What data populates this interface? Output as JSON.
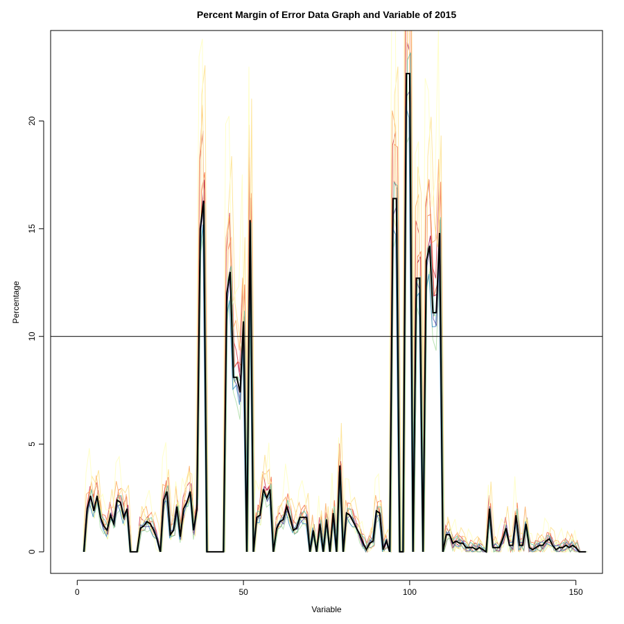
{
  "chart_data": {
    "type": "line",
    "title": "Percent Margin of Error Data Graph and  Variable of 2015",
    "xlabel": "Variable",
    "ylabel": "Percentage",
    "xlim": [
      -8,
      158
    ],
    "ylim": [
      -1,
      24.2
    ],
    "x_ticks": [
      0,
      50,
      100,
      150
    ],
    "y_ticks": [
      0,
      5,
      10,
      15,
      20
    ],
    "x_tick_labels": [
      "0",
      "50",
      "100",
      "150"
    ],
    "y_tick_labels": [
      "0",
      "5",
      "10",
      "15",
      "20"
    ],
    "reference_line": {
      "y": 10,
      "color": "#000000"
    },
    "grid": false,
    "legend": "none",
    "main_series": {
      "color": "#000000",
      "points": [
        [
          2,
          0
        ],
        [
          3,
          2.0
        ],
        [
          4,
          2.6
        ],
        [
          5,
          1.9
        ],
        [
          6,
          2.6
        ],
        [
          7,
          1.6
        ],
        [
          8,
          1.2
        ],
        [
          9,
          1.0
        ],
        [
          10,
          1.7
        ],
        [
          11,
          1.3
        ],
        [
          12,
          2.4
        ],
        [
          13,
          2.3
        ],
        [
          14,
          1.6
        ],
        [
          15,
          2.0
        ],
        [
          16,
          0
        ],
        [
          17,
          0
        ],
        [
          18,
          0
        ],
        [
          19,
          1.1
        ],
        [
          20,
          1.2
        ],
        [
          21,
          1.4
        ],
        [
          22,
          1.3
        ],
        [
          23,
          1.0
        ],
        [
          24,
          0.6
        ],
        [
          25,
          0
        ],
        [
          26,
          2.4
        ],
        [
          27,
          2.8
        ],
        [
          28,
          0.8
        ],
        [
          29,
          1.0
        ],
        [
          30,
          2.1
        ],
        [
          31,
          0.7
        ],
        [
          32,
          2.0
        ],
        [
          33,
          2.3
        ],
        [
          34,
          2.8
        ],
        [
          35,
          1.0
        ],
        [
          36,
          2.0
        ],
        [
          37,
          15.0
        ],
        [
          38,
          16.3
        ],
        [
          39,
          0
        ],
        [
          40,
          0
        ],
        [
          41,
          0
        ],
        [
          42,
          0
        ],
        [
          43,
          0
        ],
        [
          44,
          0
        ],
        [
          45,
          12.0
        ],
        [
          46,
          13.0
        ],
        [
          47,
          8.1
        ],
        [
          48,
          8.1
        ],
        [
          49,
          7.4
        ],
        [
          50,
          10.7
        ],
        [
          51,
          0
        ],
        [
          52,
          15.4
        ],
        [
          53,
          0
        ],
        [
          54,
          1.6
        ],
        [
          55,
          1.7
        ],
        [
          56,
          2.9
        ],
        [
          57,
          2.5
        ],
        [
          58,
          2.9
        ],
        [
          59,
          0
        ],
        [
          60,
          1.1
        ],
        [
          61,
          1.4
        ],
        [
          62,
          1.5
        ],
        [
          63,
          2.1
        ],
        [
          64,
          1.6
        ],
        [
          65,
          1.0
        ],
        [
          66,
          1.1
        ],
        [
          67,
          1.6
        ],
        [
          68,
          1.6
        ],
        [
          69,
          1.6
        ],
        [
          70,
          0
        ],
        [
          71,
          1.0
        ],
        [
          72,
          0
        ],
        [
          73,
          1.3
        ],
        [
          74,
          0
        ],
        [
          75,
          1.5
        ],
        [
          76,
          0
        ],
        [
          77,
          1.8
        ],
        [
          78,
          0
        ],
        [
          79,
          4.0
        ],
        [
          80,
          0
        ],
        [
          81,
          1.8
        ],
        [
          82,
          1.7
        ],
        [
          83,
          1.4
        ],
        [
          84,
          1.1
        ],
        [
          85,
          0.8
        ],
        [
          86,
          0.4
        ],
        [
          87,
          0.1
        ],
        [
          88,
          0.4
        ],
        [
          89,
          0.5
        ],
        [
          90,
          1.9
        ],
        [
          91,
          1.8
        ],
        [
          92,
          0.1
        ],
        [
          93,
          0.5
        ],
        [
          94,
          0
        ],
        [
          95,
          16.4
        ],
        [
          96,
          16.4
        ],
        [
          97,
          0
        ],
        [
          98,
          0
        ],
        [
          99,
          22.2
        ],
        [
          100,
          22.2
        ],
        [
          101,
          0
        ],
        [
          102,
          12.7
        ],
        [
          103,
          12.7
        ],
        [
          104,
          0
        ],
        [
          105,
          13.5
        ],
        [
          106,
          14.2
        ],
        [
          107,
          11.1
        ],
        [
          108,
          11.1
        ],
        [
          109,
          14.8
        ],
        [
          110,
          0
        ],
        [
          111,
          0.8
        ],
        [
          112,
          0.8
        ],
        [
          113,
          0.4
        ],
        [
          114,
          0.5
        ],
        [
          115,
          0.4
        ],
        [
          116,
          0.4
        ],
        [
          117,
          0.2
        ],
        [
          118,
          0.2
        ],
        [
          119,
          0.2
        ],
        [
          120,
          0.1
        ],
        [
          121,
          0.2
        ],
        [
          122,
          0.1
        ],
        [
          123,
          0
        ],
        [
          124,
          2.0
        ],
        [
          125,
          0.2
        ],
        [
          126,
          0.2
        ],
        [
          127,
          0.2
        ],
        [
          128,
          0.6
        ],
        [
          129,
          1.1
        ],
        [
          130,
          0.3
        ],
        [
          131,
          0.3
        ],
        [
          132,
          1.7
        ],
        [
          133,
          0.3
        ],
        [
          134,
          0.3
        ],
        [
          135,
          1.3
        ],
        [
          136,
          0.2
        ],
        [
          137,
          0.1
        ],
        [
          138,
          0.2
        ],
        [
          139,
          0.3
        ],
        [
          140,
          0.3
        ],
        [
          141,
          0.5
        ],
        [
          142,
          0.6
        ],
        [
          143,
          0.3
        ],
        [
          144,
          0.1
        ],
        [
          145,
          0.2
        ],
        [
          146,
          0.2
        ],
        [
          147,
          0.3
        ],
        [
          148,
          0.2
        ],
        [
          149,
          0.3
        ],
        [
          150,
          0.2
        ],
        [
          151,
          0
        ],
        [
          152,
          0
        ],
        [
          153,
          0
        ]
      ]
    },
    "background_series": [
      {
        "color": "#9E0142",
        "offset": 0.25,
        "scale": 1.05,
        "jitter": 0.22
      },
      {
        "color": "#D53E4F",
        "offset": -0.15,
        "scale": 1.18,
        "jitter": 0.3
      },
      {
        "color": "#F46D43",
        "offset": 0.35,
        "scale": 1.12,
        "jitter": 0.35
      },
      {
        "color": "#FDAE61",
        "offset": -0.25,
        "scale": 1.25,
        "jitter": 0.45
      },
      {
        "color": "#FEE08B",
        "offset": 0.45,
        "scale": 1.35,
        "jitter": 0.6
      },
      {
        "color": "#FFFFBF",
        "offset": -0.35,
        "scale": 1.55,
        "jitter": 0.8
      },
      {
        "color": "#E6F598",
        "offset": 0.15,
        "scale": 0.95,
        "jitter": 0.35
      },
      {
        "color": "#ABDDA4",
        "offset": -0.05,
        "scale": 0.88,
        "jitter": 0.3
      },
      {
        "color": "#66C2A5",
        "offset": 0.3,
        "scale": 1.02,
        "jitter": 0.25
      },
      {
        "color": "#3288BD",
        "offset": -0.2,
        "scale": 0.92,
        "jitter": 0.2
      },
      {
        "color": "#5E4FA2",
        "offset": 0.1,
        "scale": 0.97,
        "jitter": 0.18
      }
    ]
  }
}
